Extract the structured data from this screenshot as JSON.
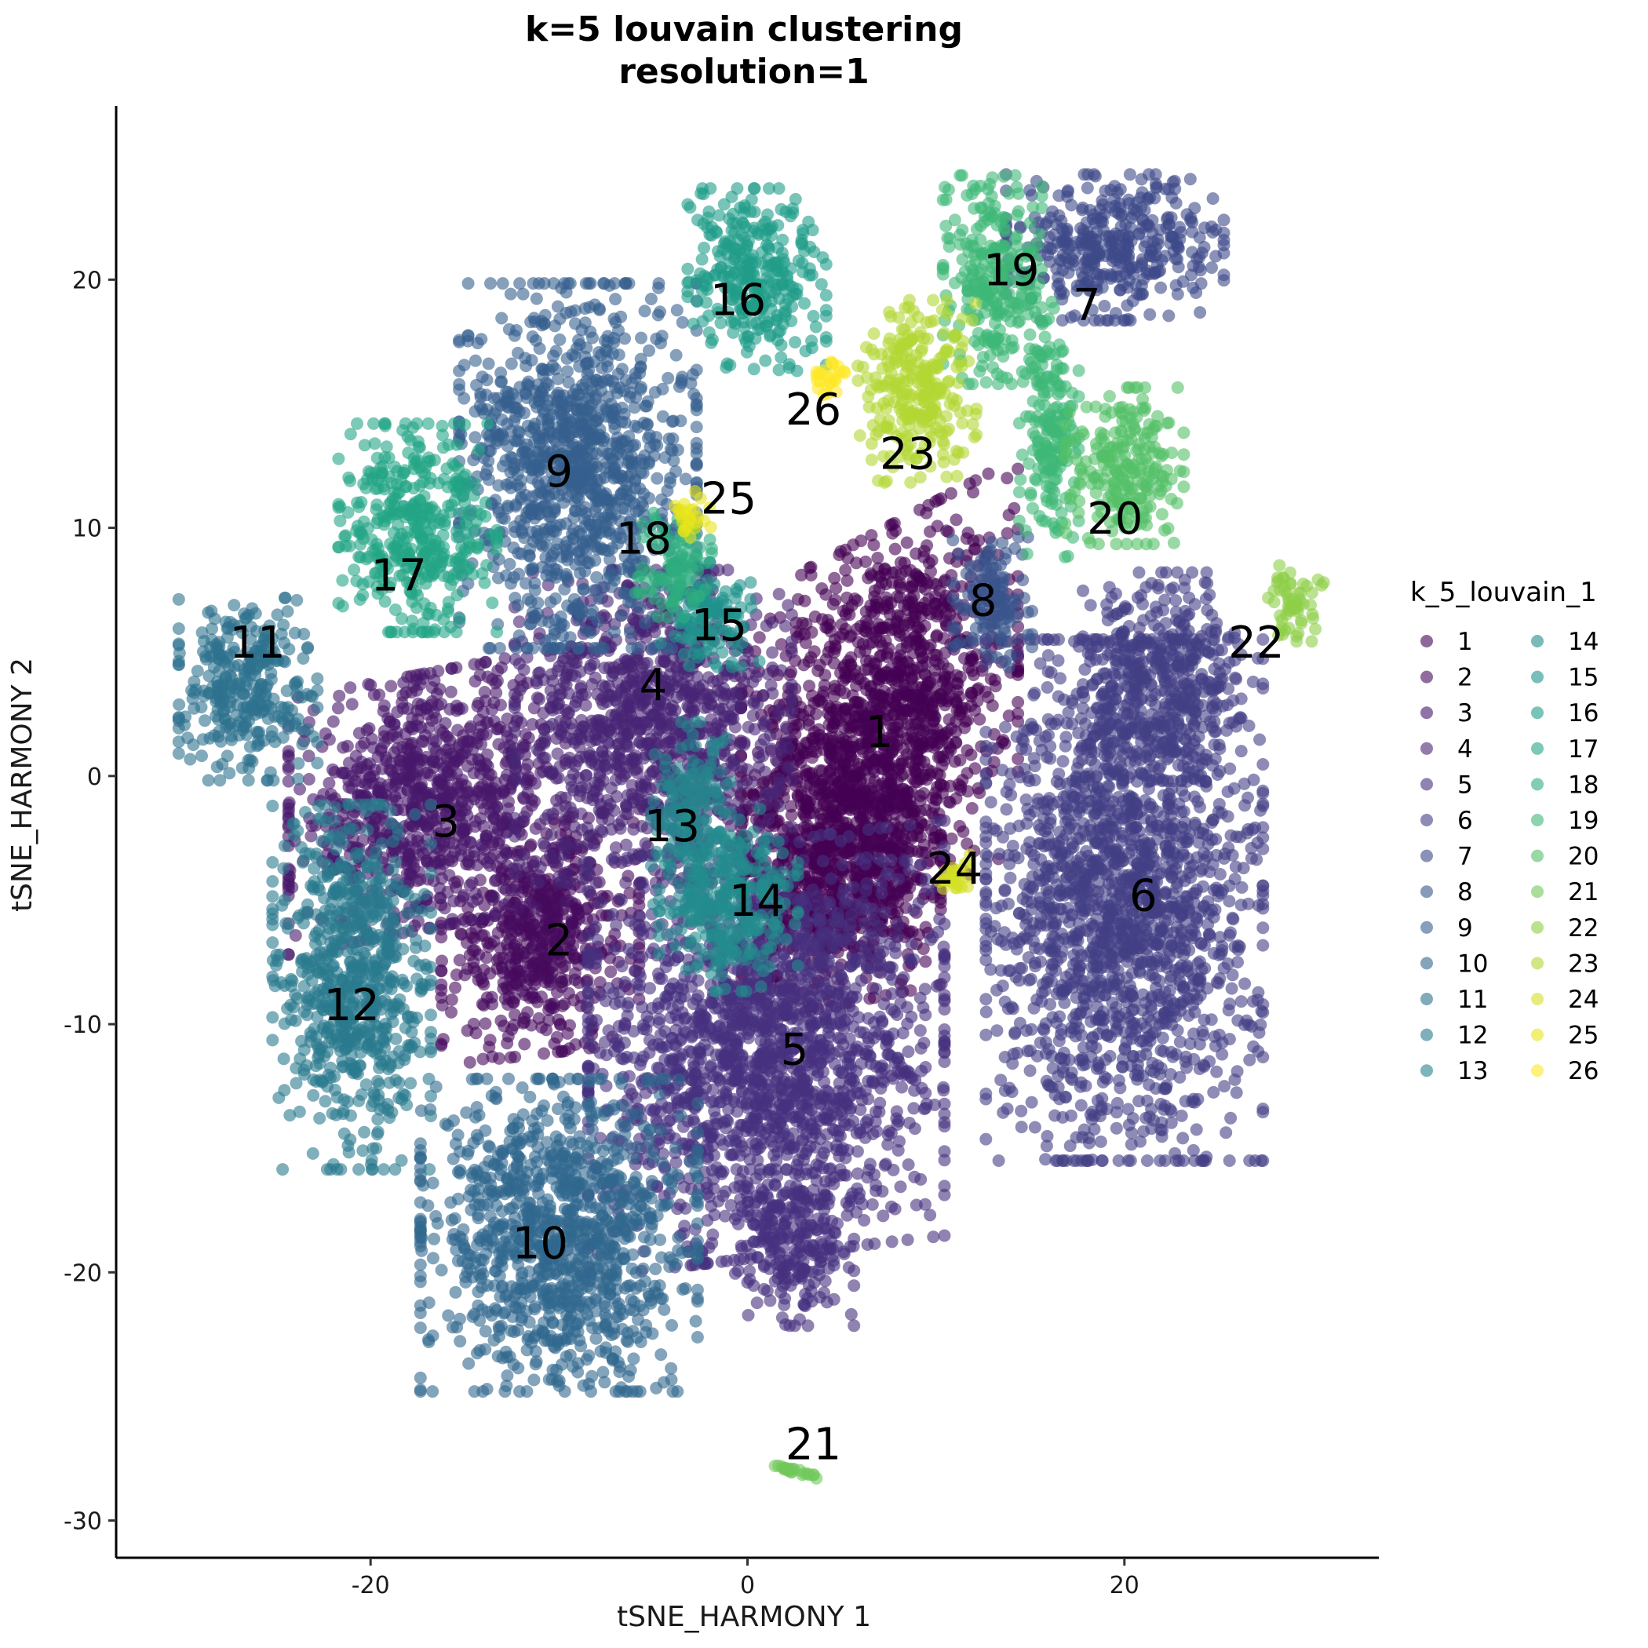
{
  "chart_data": {
    "type": "scatter",
    "title": "k=5 louvain clustering",
    "subtitle": "resolution=1",
    "xlabel": "tSNE_HARMONY 1",
    "ylabel": "tSNE_HARMONY 2",
    "xlim": [
      -33.5,
      33.5
    ],
    "ylim": [
      -31.5,
      27
    ],
    "x_ticks": [
      -20,
      0,
      20
    ],
    "y_ticks": [
      -30,
      -20,
      -10,
      0,
      10,
      20
    ],
    "grid": false,
    "legend": {
      "title": "k_5_louvain_1",
      "position": "right",
      "columns": 2
    },
    "palette": "viridis",
    "point_alpha": 0.6,
    "clusters": [
      {
        "label": "1",
        "label_x": 7,
        "label_y": 1.8,
        "color": "#440154",
        "blobs": [
          [
            7,
            2,
            7,
            8,
            0.35
          ],
          [
            5,
            -4,
            5,
            5,
            0.15
          ]
        ]
      },
      {
        "label": "2",
        "label_x": -10,
        "label_y": -6.6,
        "color": "#460A5D",
        "blobs": [
          [
            -11,
            -6.5,
            5,
            4.5,
            0.1
          ]
        ]
      },
      {
        "label": "3",
        "label_x": -16,
        "label_y": -1.8,
        "color": "#48186A",
        "blobs": [
          [
            -17,
            -1,
            7,
            5,
            0.2
          ]
        ]
      },
      {
        "label": "4",
        "label_x": -5,
        "label_y": 3.7,
        "color": "#472575",
        "blobs": [
          [
            -5,
            2,
            7,
            6,
            0
          ]
        ]
      },
      {
        "label": "5",
        "label_x": 2.5,
        "label_y": -11,
        "color": "#46317E",
        "blobs": [
          [
            1,
            -11,
            9,
            8,
            0.1
          ],
          [
            2.5,
            -19,
            3,
            3,
            0
          ]
        ]
      },
      {
        "label": "6",
        "label_x": 21,
        "label_y": -4.8,
        "color": "#423F85",
        "blobs": [
          [
            20,
            -5,
            7,
            10,
            0
          ],
          [
            22,
            4,
            4,
            4,
            0
          ]
        ]
      },
      {
        "label": "7",
        "label_x": 18,
        "label_y": 19,
        "color": "#3E4A89",
        "blobs": [
          [
            19.5,
            21.3,
            5.5,
            2.8,
            0
          ]
        ]
      },
      {
        "label": "8",
        "label_x": 12.5,
        "label_y": 7.1,
        "color": "#39558C",
        "blobs": [
          [
            13,
            7,
            2,
            2.5,
            0
          ]
        ]
      },
      {
        "label": "9",
        "label_x": -10,
        "label_y": 12.3,
        "color": "#355F8D",
        "blobs": [
          [
            -9,
            12.5,
            6,
            7,
            0
          ]
        ]
      },
      {
        "label": "10",
        "label_x": -11,
        "label_y": -18.8,
        "color": "#31688E",
        "blobs": [
          [
            -10,
            -18.5,
            7,
            6,
            0
          ]
        ]
      },
      {
        "label": "11",
        "label_x": -26,
        "label_y": 5.4,
        "color": "#2D718E",
        "blobs": [
          [
            -26.5,
            3.5,
            3.5,
            3.5,
            0
          ]
        ]
      },
      {
        "label": "12",
        "label_x": -21,
        "label_y": -9.2,
        "color": "#2A7A8E",
        "blobs": [
          [
            -21,
            -8.5,
            4,
            7,
            0
          ]
        ]
      },
      {
        "label": "13",
        "label_x": -4,
        "label_y": -2,
        "color": "#26838E",
        "blobs": [
          [
            -3,
            -1.5,
            2,
            3.5,
            0
          ]
        ]
      },
      {
        "label": "14",
        "label_x": 0.5,
        "label_y": -5,
        "color": "#238C8D",
        "blobs": [
          [
            -1,
            -5,
            3.5,
            3.5,
            0
          ]
        ]
      },
      {
        "label": "15",
        "label_x": -1.5,
        "label_y": 6.1,
        "color": "#20938C",
        "blobs": [
          [
            -2,
            6.5,
            2.5,
            2,
            0
          ]
        ]
      },
      {
        "label": "16",
        "label_x": -0.5,
        "label_y": 19.2,
        "color": "#1F9C89",
        "blobs": [
          [
            0.5,
            20,
            3.5,
            3.5,
            0
          ]
        ]
      },
      {
        "label": "17",
        "label_x": -18.5,
        "label_y": 8.1,
        "color": "#23A585",
        "blobs": [
          [
            -17.5,
            10,
            4,
            4,
            0
          ]
        ]
      },
      {
        "label": "18",
        "label_x": -5.5,
        "label_y": 9.6,
        "color": "#2EAE7F",
        "blobs": [
          [
            -4,
            8.5,
            2,
            2,
            0
          ]
        ]
      },
      {
        "label": "19",
        "label_x": 14,
        "label_y": 20.4,
        "color": "#3EB776",
        "blobs": [
          [
            13,
            20,
            2.5,
            4,
            0
          ],
          [
            16,
            14,
            1.5,
            5,
            0
          ]
        ]
      },
      {
        "label": "20",
        "label_x": 19.5,
        "label_y": 10.4,
        "color": "#54C068",
        "blobs": [
          [
            20,
            12.5,
            3,
            3,
            0
          ]
        ]
      },
      {
        "label": "21",
        "label_x": 3.5,
        "label_y": -26.9,
        "color": "#70C85A",
        "blobs": [
          [
            2.5,
            -28,
            1.1,
            0.25,
            -0.9
          ]
        ]
      },
      {
        "label": "22",
        "label_x": 27,
        "label_y": 5.4,
        "color": "#8ECF48",
        "blobs": [
          [
            29,
            7,
            1.5,
            1.5,
            0
          ]
        ]
      },
      {
        "label": "23",
        "label_x": 8.5,
        "label_y": 13,
        "color": "#B2D734",
        "blobs": [
          [
            9,
            15.5,
            3,
            3.5,
            0
          ]
        ]
      },
      {
        "label": "24",
        "label_x": 11,
        "label_y": -3.7,
        "color": "#D3DF24",
        "blobs": [
          [
            11,
            -4,
            0.8,
            0.8,
            0
          ]
        ]
      },
      {
        "label": "25",
        "label_x": -1,
        "label_y": 11.2,
        "color": "#E8E41A",
        "blobs": [
          [
            -3,
            10.5,
            1,
            1,
            0
          ]
        ]
      },
      {
        "label": "26",
        "label_x": 3.5,
        "label_y": 14.8,
        "color": "#FDE725",
        "blobs": [
          [
            4.5,
            16.2,
            0.8,
            0.8,
            0
          ]
        ]
      }
    ]
  }
}
